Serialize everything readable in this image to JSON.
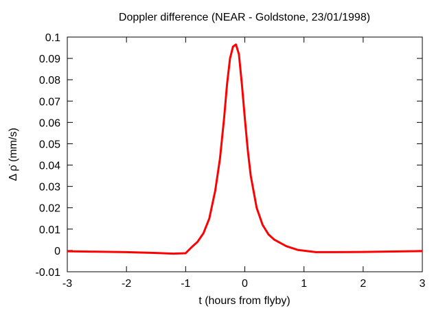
{
  "chart_data": {
    "type": "line",
    "title": "Doppler difference (NEAR - Goldstone, 23/01/1998)",
    "x_label": "t (hours from flyby)",
    "y_label": "Δ ρ̇ (mm/s)",
    "x": [
      -3,
      -2.5,
      -2,
      -1.5,
      -1.2,
      -1,
      -0.9,
      -0.8,
      -0.7,
      -0.6,
      -0.5,
      -0.42,
      -0.35,
      -0.3,
      -0.25,
      -0.2,
      -0.15,
      -0.1,
      -0.05,
      0,
      0.05,
      0.1,
      0.2,
      0.3,
      0.4,
      0.5,
      0.7,
      0.9,
      1.2,
      1.5,
      2,
      2.5,
      3
    ],
    "series": [
      {
        "name": "NEAR",
        "color": "#ff0000",
        "values": [
          -0.0004,
          -0.0006,
          -0.0008,
          -0.0012,
          -0.0015,
          -0.0013,
          0.0015,
          0.004,
          0.008,
          0.015,
          0.028,
          0.043,
          0.062,
          0.078,
          0.09,
          0.0955,
          0.0965,
          0.092,
          0.078,
          0.062,
          0.047,
          0.035,
          0.02,
          0.012,
          0.0075,
          0.005,
          0.002,
          0.0002,
          -0.0008,
          -0.0008,
          -0.0007,
          -0.0005,
          -0.0003
        ]
      }
    ],
    "xlim": [
      -3,
      3
    ],
    "xticks": [
      -3,
      -2,
      -1,
      0,
      1,
      2,
      3
    ],
    "ylim": [
      -0.01,
      0.1
    ],
    "yticks": [
      -0.01,
      0,
      0.01,
      0.02,
      0.03,
      0.04,
      0.05,
      0.06,
      0.07,
      0.08,
      0.09,
      0.1
    ]
  }
}
